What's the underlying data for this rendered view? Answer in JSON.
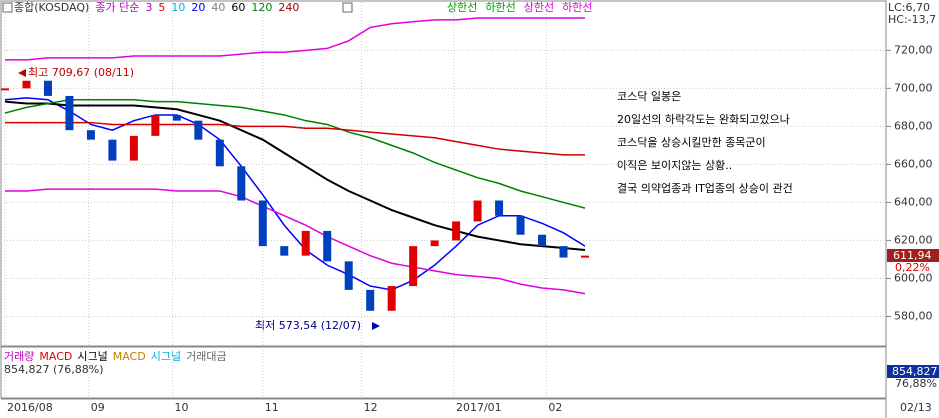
{
  "chart_data": {
    "type": "stock",
    "header": {
      "name": "종합(KOSDAQ)",
      "ma_title": "종가 단순",
      "ma_periods": [
        {
          "label": "3",
          "color": "#c000c0"
        },
        {
          "label": "5",
          "color": "#e00000"
        },
        {
          "label": "10",
          "color": "#00b0e0"
        },
        {
          "label": "20",
          "color": "#0000ff"
        },
        {
          "label": "40",
          "color": "#808080"
        },
        {
          "label": "60",
          "color": "#000000"
        },
        {
          "label": "120",
          "color": "#008000"
        },
        {
          "label": "240",
          "color": "#a00000"
        }
      ],
      "bands": [
        {
          "label": "상한선",
          "color": "#00a000"
        },
        {
          "label": "하한선",
          "color": "#00a000"
        },
        {
          "label": "상한선",
          "color": "#e000e0"
        },
        {
          "label": "하한선",
          "color": "#e000e0"
        }
      ]
    },
    "x": [
      0,
      1,
      2,
      3,
      4,
      5,
      6,
      7,
      8,
      9,
      10,
      11,
      12,
      13,
      14,
      15,
      16,
      17,
      18,
      19,
      20,
      21,
      22,
      23,
      24,
      25,
      26,
      27
    ],
    "xlim": [
      0,
      27
    ],
    "xticks": [
      {
        "value": 0,
        "label": "2016/08"
      },
      {
        "value": 3.9,
        "label": "09"
      },
      {
        "value": 7.8,
        "label": "10"
      },
      {
        "value": 12,
        "label": "11"
      },
      {
        "value": 16.6,
        "label": "12"
      },
      {
        "value": 20.9,
        "label": "2017/01"
      },
      {
        "value": 25.2,
        "label": "02"
      }
    ],
    "ylim": [
      565,
      737
    ],
    "yticks": [
      {
        "value": 720,
        "label": "720,00"
      },
      {
        "value": 700,
        "label": "700,00"
      },
      {
        "value": 680,
        "label": "680,00"
      },
      {
        "value": 660,
        "label": "660,00"
      },
      {
        "value": 640,
        "label": "640,00"
      },
      {
        "value": 620,
        "label": "620,00"
      },
      {
        "value": 600,
        "label": "600,00"
      },
      {
        "value": 580,
        "label": "580,00"
      }
    ],
    "close": [
      700,
      704,
      696,
      678,
      673,
      662,
      675,
      686,
      683,
      673,
      659,
      641,
      617,
      612,
      625,
      609,
      594,
      583,
      596,
      617,
      620,
      630,
      641,
      633,
      623,
      617,
      611,
      612
    ],
    "series": [
      {
        "name": "20",
        "color": "#0000ff",
        "values": [
          694,
          695,
          694,
          688,
          681,
          678,
          683,
          686,
          686,
          681,
          673,
          659,
          644,
          628,
          615,
          607,
          602,
          596,
          594,
          599,
          607,
          617,
          628,
          633,
          633,
          629,
          624,
          617
        ]
      },
      {
        "name": "60",
        "color": "#000000",
        "values": [
          693,
          692,
          692,
          691,
          691,
          691,
          691,
          690,
          689,
          686,
          683,
          678,
          673,
          666,
          659,
          652,
          646,
          641,
          636,
          632,
          628,
          625,
          622,
          620,
          618,
          617,
          616,
          615
        ]
      },
      {
        "name": "120",
        "color": "#008000",
        "values": [
          687,
          690,
          692,
          694,
          694,
          694,
          694,
          693,
          693,
          692,
          691,
          690,
          688,
          686,
          683,
          681,
          677,
          674,
          670,
          666,
          661,
          657,
          653,
          650,
          646,
          643,
          640,
          637
        ]
      },
      {
        "name": "240",
        "color": "#d00000",
        "values": [
          682,
          682,
          682,
          682,
          682,
          681,
          681,
          681,
          681,
          681,
          681,
          680,
          680,
          680,
          679,
          679,
          678,
          677,
          676,
          675,
          674,
          672,
          670,
          668,
          667,
          666,
          665,
          665
        ]
      },
      {
        "name": "상한선",
        "color": "#e000e0",
        "values": [
          715,
          715,
          716,
          716,
          716,
          716,
          717,
          717,
          717,
          717,
          717,
          718,
          719,
          719,
          720,
          721,
          725,
          732,
          734,
          735,
          736,
          736,
          737,
          737,
          737,
          737,
          737,
          737
        ]
      },
      {
        "name": "하한선",
        "color": "#e000e0",
        "values": [
          646,
          646,
          647,
          647,
          647,
          647,
          647,
          647,
          646,
          646,
          646,
          643,
          638,
          633,
          628,
          622,
          617,
          612,
          608,
          606,
          604,
          602,
          601,
          600,
          597,
          595,
          594,
          592
        ]
      }
    ],
    "annotations": {
      "high": "최고 709,67 (08/11)",
      "low": "최저 573,54 (12/07)"
    },
    "notes": [
      "코스닥 일봉은",
      "20일선의 하락각도는 완화되고있으나",
      "코스닥을 상승시킬만한 종목군이",
      "아직은 보이지않는 상황..",
      "결국 의약업종과 IT업종의 상승이 관건"
    ],
    "right_labels": {
      "lc": "LC:6,70",
      "hc": "HC:-13,7",
      "last": "611,94",
      "change": "0,22%"
    },
    "lower_panel": {
      "legend": [
        "거래량",
        "MACD",
        "시그널",
        "MACD",
        "시그널",
        "거래대금"
      ],
      "value": "854,827 (76,88%)",
      "right_value": "854,827",
      "right_pct": "76,88%"
    },
    "date": "02/13"
  }
}
